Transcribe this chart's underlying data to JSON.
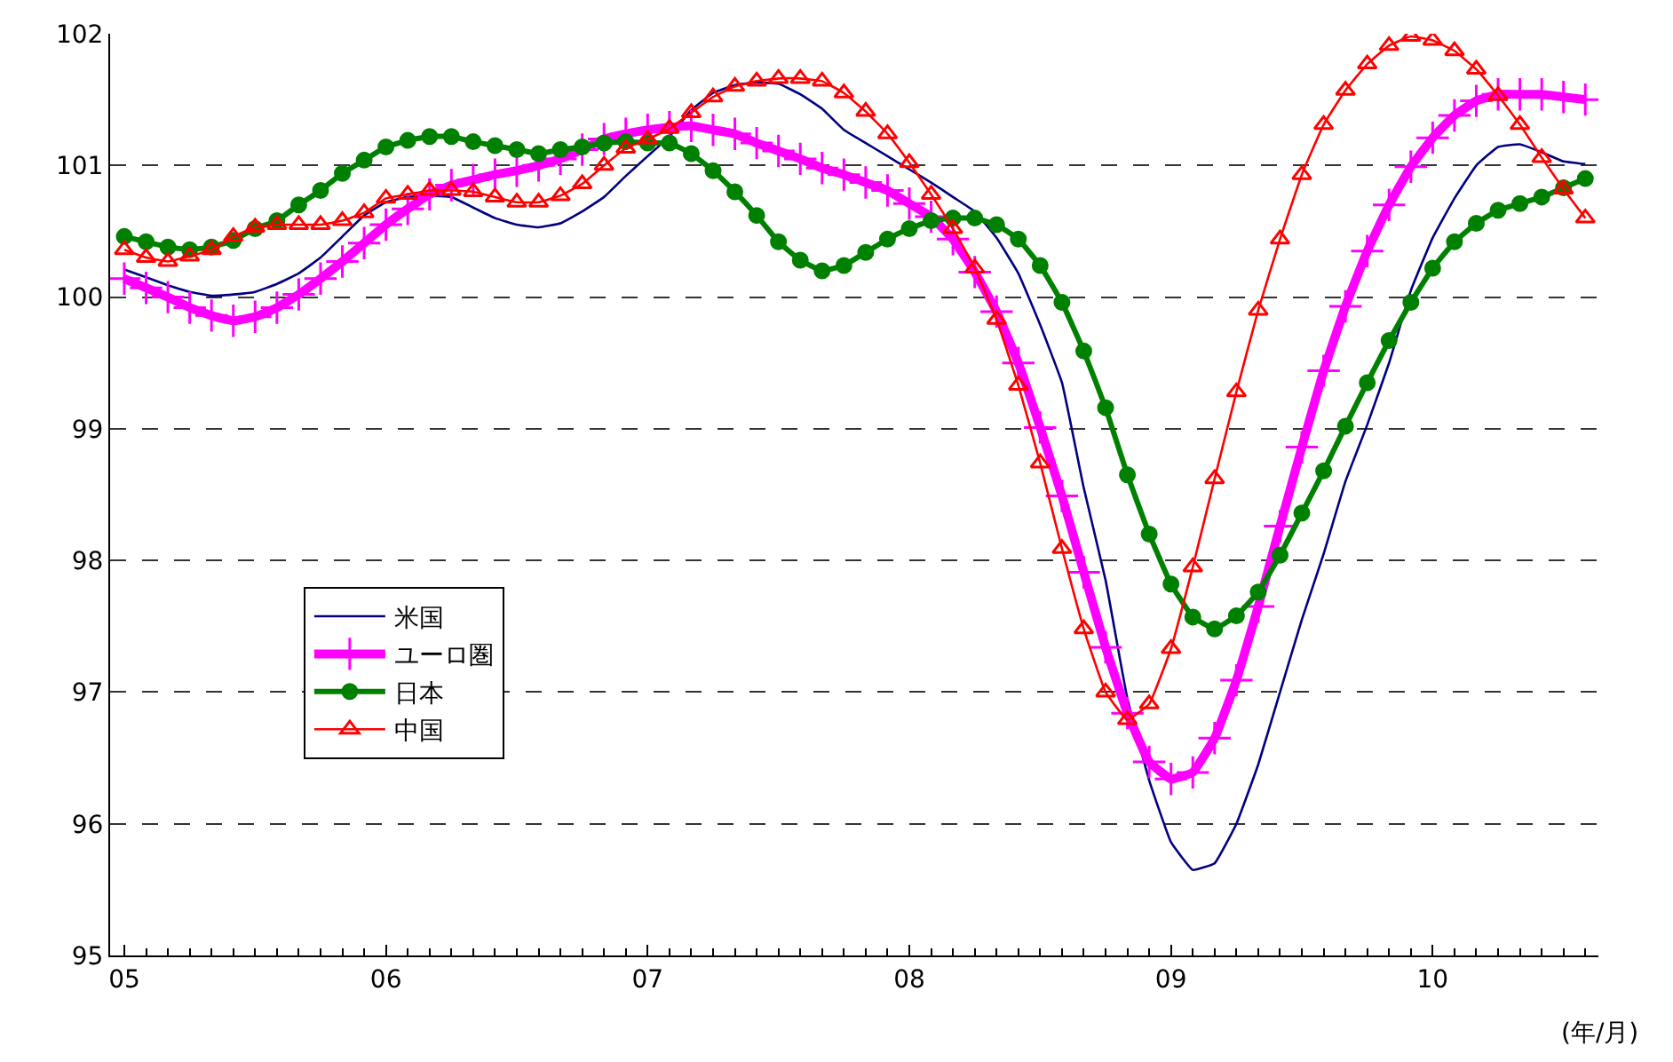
{
  "chart_data": {
    "type": "line",
    "xlabel": "(年/月)",
    "categories": [
      "05",
      null,
      null,
      null,
      null,
      null,
      null,
      null,
      null,
      null,
      null,
      null,
      "06",
      null,
      null,
      null,
      null,
      null,
      null,
      null,
      null,
      null,
      null,
      null,
      "07",
      null,
      null,
      null,
      null,
      null,
      null,
      null,
      null,
      null,
      null,
      null,
      "08",
      null,
      null,
      null,
      null,
      null,
      null,
      null,
      null,
      null,
      null,
      null,
      "09",
      null,
      null,
      null,
      null,
      null,
      null,
      null,
      null,
      null,
      null,
      null,
      "10",
      null,
      null,
      null,
      null,
      null,
      null,
      null
    ],
    "series": [
      {
        "name": "米国",
        "color": "#000080",
        "marker": "none",
        "values": [
          100.21,
          100.15,
          100.09,
          100.04,
          100.01,
          100.02,
          100.04,
          100.1,
          100.18,
          100.3,
          100.46,
          100.62,
          100.72,
          100.76,
          100.77,
          100.76,
          100.68,
          100.6,
          100.55,
          100.53,
          100.56,
          100.65,
          100.76,
          100.92,
          101.07,
          101.22,
          101.42,
          101.55,
          101.61,
          101.63,
          101.62,
          101.54,
          101.43,
          101.27,
          101.17,
          101.07,
          100.97,
          100.87,
          100.76,
          100.65,
          100.45,
          100.18,
          99.79,
          99.35,
          98.55,
          97.85,
          96.95,
          96.33,
          95.86,
          95.65,
          95.7,
          96.0,
          96.45,
          97.0,
          97.55,
          98.05,
          98.6,
          99.03,
          99.5,
          100.05,
          100.45,
          100.75,
          101.0,
          101.14,
          101.16,
          101.1,
          101.03,
          101.01
        ]
      },
      {
        "name": "ユーロ圏",
        "color": "#ff00ff",
        "marker": "cross",
        "values": [
          100.14,
          100.07,
          100.0,
          99.92,
          99.86,
          99.82,
          99.85,
          99.92,
          100.02,
          100.14,
          100.27,
          100.41,
          100.55,
          100.67,
          100.78,
          100.85,
          100.89,
          100.93,
          100.96,
          101.0,
          101.05,
          101.12,
          101.2,
          101.24,
          101.27,
          101.29,
          101.3,
          101.27,
          101.24,
          101.17,
          101.11,
          101.05,
          100.98,
          100.93,
          100.87,
          100.81,
          100.71,
          100.61,
          100.44,
          100.19,
          99.89,
          99.5,
          99.01,
          98.49,
          97.91,
          97.34,
          96.84,
          96.47,
          96.34,
          96.39,
          96.65,
          97.09,
          97.65,
          98.26,
          98.86,
          99.44,
          99.93,
          100.35,
          100.7,
          100.99,
          101.21,
          101.38,
          101.49,
          101.54,
          101.54,
          101.54,
          101.52,
          101.5
        ]
      },
      {
        "name": "日本",
        "color": "#008000",
        "marker": "circle",
        "values": [
          100.46,
          100.42,
          100.38,
          100.36,
          100.38,
          100.43,
          100.52,
          100.58,
          100.7,
          100.81,
          100.94,
          101.04,
          101.14,
          101.19,
          101.22,
          101.22,
          101.18,
          101.15,
          101.12,
          101.09,
          101.12,
          101.14,
          101.17,
          101.18,
          101.17,
          101.17,
          101.09,
          100.96,
          100.8,
          100.62,
          100.42,
          100.28,
          100.2,
          100.24,
          100.34,
          100.44,
          100.52,
          100.58,
          100.6,
          100.6,
          100.55,
          100.44,
          100.24,
          99.96,
          99.59,
          99.16,
          98.65,
          98.2,
          97.82,
          97.57,
          97.48,
          97.58,
          97.76,
          98.04,
          98.36,
          98.68,
          99.02,
          99.35,
          99.67,
          99.96,
          100.22,
          100.42,
          100.56,
          100.66,
          100.71,
          100.76,
          100.83,
          100.9
        ]
      },
      {
        "name": "中国",
        "color": "#ff0000",
        "marker": "triangle",
        "values": [
          100.36,
          100.3,
          100.27,
          100.31,
          100.36,
          100.46,
          100.53,
          100.55,
          100.55,
          100.55,
          100.58,
          100.64,
          100.75,
          100.78,
          100.81,
          100.81,
          100.8,
          100.76,
          100.72,
          100.72,
          100.77,
          100.86,
          101.0,
          101.13,
          101.2,
          101.28,
          101.4,
          101.52,
          101.6,
          101.64,
          101.66,
          101.66,
          101.64,
          101.55,
          101.41,
          101.24,
          101.02,
          100.78,
          100.52,
          100.22,
          99.83,
          99.33,
          98.74,
          98.09,
          97.48,
          97.0,
          96.79,
          96.91,
          97.33,
          97.95,
          98.62,
          99.28,
          99.9,
          100.44,
          100.93,
          101.31,
          101.57,
          101.77,
          101.91,
          101.98,
          101.95,
          101.87,
          101.73,
          101.53,
          101.31,
          101.06,
          100.82,
          100.6
        ]
      }
    ],
    "ylim": [
      95,
      102
    ],
    "yticks": [
      95,
      96,
      97,
      98,
      99,
      100,
      101,
      102
    ],
    "grid": "y",
    "line_style": "solid",
    "legend": "bottom left"
  }
}
